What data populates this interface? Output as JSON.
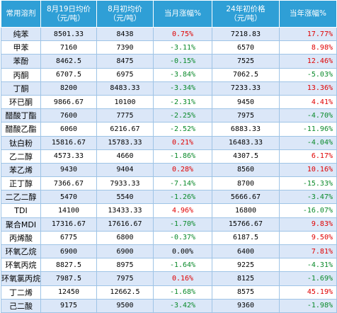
{
  "headers": [
    "常用溶剂",
    "8月19日均价\n（元/吨）",
    "8月初均价\n（元/吨）",
    "当月涨幅%",
    "24年初价格\n（元/吨）",
    "当年涨幅%"
  ],
  "colors": {
    "header_bg": "#2f9fd6",
    "row_alt_bg": "#dbe7f8",
    "up": "#e00000",
    "down": "#0a8a2a"
  },
  "rows": [
    {
      "name": "纯苯",
      "price_now": "8501.33",
      "price_start": "8438",
      "month_change": "0.75%",
      "price_year_start": "7218.83",
      "year_change": "17.77%"
    },
    {
      "name": "甲苯",
      "price_now": "7160",
      "price_start": "7390",
      "month_change": "-3.11%",
      "price_year_start": "6570",
      "year_change": "8.98%"
    },
    {
      "name": "苯酚",
      "price_now": "8462.5",
      "price_start": "8475",
      "month_change": "-0.15%",
      "price_year_start": "7525",
      "year_change": "12.46%"
    },
    {
      "name": "丙酮",
      "price_now": "6707.5",
      "price_start": "6975",
      "month_change": "-3.84%",
      "price_year_start": "7062.5",
      "year_change": "-5.03%"
    },
    {
      "name": "丁酮",
      "price_now": "8200",
      "price_start": "8483.33",
      "month_change": "-3.34%",
      "price_year_start": "7233.33",
      "year_change": "13.36%"
    },
    {
      "name": "环已酮",
      "price_now": "9866.67",
      "price_start": "10100",
      "month_change": "-2.31%",
      "price_year_start": "9450",
      "year_change": "4.41%"
    },
    {
      "name": "醋酸丁酯",
      "price_now": "7600",
      "price_start": "7775",
      "month_change": "-2.25%",
      "price_year_start": "7975",
      "year_change": "-4.70%"
    },
    {
      "name": "醋酸乙酯",
      "price_now": "6060",
      "price_start": "6216.67",
      "month_change": "-2.52%",
      "price_year_start": "6883.33",
      "year_change": "-11.96%"
    },
    {
      "name": "钛白粉",
      "price_now": "15816.67",
      "price_start": "15783.33",
      "month_change": "0.21%",
      "price_year_start": "16483.33",
      "year_change": "-4.04%"
    },
    {
      "name": "乙二醇",
      "price_now": "4573.33",
      "price_start": "4660",
      "month_change": "-1.86%",
      "price_year_start": "4307.5",
      "year_change": "6.17%"
    },
    {
      "name": "苯乙烯",
      "price_now": "9430",
      "price_start": "9404",
      "month_change": "0.28%",
      "price_year_start": "8560",
      "year_change": "10.16%"
    },
    {
      "name": "正丁醇",
      "price_now": "7366.67",
      "price_start": "7933.33",
      "month_change": "-7.14%",
      "price_year_start": "8700",
      "year_change": "-15.33%"
    },
    {
      "name": "二乙二醇",
      "price_now": "5470",
      "price_start": "5540",
      "month_change": "-1.26%",
      "price_year_start": "5666.67",
      "year_change": "-3.47%"
    },
    {
      "name": "TDI",
      "price_now": "14100",
      "price_start": "13433.33",
      "month_change": "4.96%",
      "price_year_start": "16800",
      "year_change": "-16.07%"
    },
    {
      "name": "聚合MDI",
      "price_now": "17316.67",
      "price_start": "17616.67",
      "month_change": "-1.70%",
      "price_year_start": "15766.67",
      "year_change": "9.83%"
    },
    {
      "name": "丙烯酸",
      "price_now": "6775",
      "price_start": "6800",
      "month_change": "-0.37%",
      "price_year_start": "6187.5",
      "year_change": "9.50%"
    },
    {
      "name": "环氧乙烷",
      "price_now": "6900",
      "price_start": "6900",
      "month_change": "0.00%",
      "price_year_start": "6400",
      "year_change": "7.81%"
    },
    {
      "name": "环氧丙烷",
      "price_now": "8827.5",
      "price_start": "8975",
      "month_change": "-1.64%",
      "price_year_start": "9225",
      "year_change": "-4.31%"
    },
    {
      "name": "环氧氯丙烷",
      "price_now": "7987.5",
      "price_start": "7975",
      "month_change": "0.16%",
      "price_year_start": "8125",
      "year_change": "-1.69%"
    },
    {
      "name": "丁二烯",
      "price_now": "12450",
      "price_start": "12662.5",
      "month_change": "-1.68%",
      "price_year_start": "8575",
      "year_change": "45.19%"
    },
    {
      "name": "己二酸",
      "price_now": "9175",
      "price_start": "9500",
      "month_change": "-3.42%",
      "price_year_start": "9360",
      "year_change": "-1.98%"
    }
  ]
}
